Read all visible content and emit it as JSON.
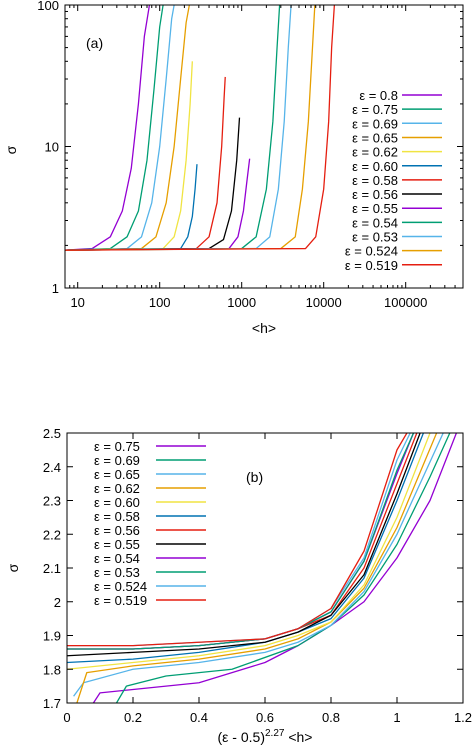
{
  "chart_data": [
    {
      "id": "a",
      "type": "line",
      "annotation": "(a)",
      "xlabel": "<h>",
      "ylabel": "σ",
      "xscale": "log",
      "yscale": "log",
      "xlim": [
        7,
        500000
      ],
      "ylim": [
        1,
        100
      ],
      "xticks": [
        {
          "v": 10,
          "label": "10"
        },
        {
          "v": 100,
          "label": "100"
        },
        {
          "v": 1000,
          "label": "1000"
        },
        {
          "v": 10000,
          "label": "10000"
        },
        {
          "v": 100000,
          "label": "100000"
        }
      ],
      "yticks": [
        {
          "v": 1,
          "label": "1"
        },
        {
          "v": 10,
          "label": "10"
        },
        {
          "v": 100,
          "label": "100"
        }
      ],
      "legend_position": "right",
      "series": [
        {
          "name": "ε = 0.8",
          "color": "#9400d3",
          "x": [
            7,
            15,
            25,
            35,
            45,
            55,
            65,
            75
          ],
          "y": [
            1.85,
            1.9,
            2.3,
            3.5,
            7,
            20,
            60,
            100
          ]
        },
        {
          "name": "ε = 0.75",
          "color": "#009e73",
          "x": [
            7,
            25,
            40,
            55,
            70,
            85,
            100,
            110
          ],
          "y": [
            1.85,
            1.9,
            2.3,
            3.5,
            8,
            25,
            70,
            100
          ]
        },
        {
          "name": "ε = 0.69",
          "color": "#56b4e9",
          "x": [
            7,
            40,
            60,
            80,
            100,
            120,
            140,
            150
          ],
          "y": [
            1.85,
            1.9,
            2.3,
            4,
            10,
            30,
            80,
            100
          ]
        },
        {
          "name": "ε = 0.65",
          "color": "#e69f00",
          "x": [
            7,
            60,
            90,
            120,
            150,
            180,
            210,
            230
          ],
          "y": [
            1.85,
            1.9,
            2.3,
            4,
            10,
            30,
            75,
            100
          ]
        },
        {
          "name": "ε = 0.62",
          "color": "#f0e442",
          "x": [
            7,
            110,
            150,
            180,
            210,
            235,
            250
          ],
          "y": [
            1.85,
            1.9,
            2.3,
            3.5,
            8,
            20,
            40
          ]
        },
        {
          "name": "ε = 0.60",
          "color": "#0072b2",
          "x": [
            7,
            180,
            220,
            250,
            270,
            285
          ],
          "y": [
            1.85,
            1.9,
            2.3,
            3.2,
            5,
            7.5
          ]
        },
        {
          "name": "ε = 0.58",
          "color": "#e51e10",
          "x": [
            7,
            280,
            400,
            500,
            570,
            610,
            630
          ],
          "y": [
            1.85,
            1.9,
            2.3,
            4,
            10,
            22,
            31
          ]
        },
        {
          "name": "ε = 0.56",
          "color": "#000000",
          "x": [
            7,
            400,
            600,
            750,
            870,
            940
          ],
          "y": [
            1.85,
            1.9,
            2.2,
            3.5,
            8,
            16
          ]
        },
        {
          "name": "ε = 0.55",
          "color": "#9400d3",
          "x": [
            7,
            700,
            900,
            1050,
            1150,
            1250
          ],
          "y": [
            1.85,
            1.9,
            2.3,
            3.5,
            5.5,
            8.2
          ]
        },
        {
          "name": "ε = 0.54",
          "color": "#009e73",
          "x": [
            7,
            1000,
            1500,
            2000,
            2400,
            2700,
            2900
          ],
          "y": [
            1.85,
            1.9,
            2.3,
            5,
            15,
            50,
            100
          ]
        },
        {
          "name": "ε = 0.53",
          "color": "#56b4e9",
          "x": [
            7,
            1500,
            2200,
            2800,
            3300,
            3700,
            4000
          ],
          "y": [
            1.85,
            1.9,
            2.3,
            5,
            15,
            50,
            100
          ]
        },
        {
          "name": "ε = 0.524",
          "color": "#e69f00",
          "x": [
            7,
            3000,
            4500,
            5500,
            6500,
            7300,
            7800
          ],
          "y": [
            1.85,
            1.9,
            2.3,
            5,
            15,
            50,
            100
          ]
        },
        {
          "name": "ε = 0.519",
          "color": "#e51e10",
          "x": [
            7,
            6000,
            8000,
            10000,
            11500,
            12500,
            13500
          ],
          "y": [
            1.85,
            1.9,
            2.3,
            5,
            15,
            50,
            100
          ]
        }
      ]
    },
    {
      "id": "b",
      "type": "line",
      "annotation": "(b)",
      "xlabel": "(ε - 0.5)^2.27 <h>",
      "xlabel_parts": {
        "prefix": "(ε - 0.5)",
        "exponent": "2.27",
        "suffix": " <h>"
      },
      "ylabel": "σ",
      "xlim": [
        0,
        1.2
      ],
      "ylim": [
        1.7,
        2.5
      ],
      "xticks": [
        {
          "v": 0,
          "label": "0"
        },
        {
          "v": 0.2,
          "label": "0.2"
        },
        {
          "v": 0.4,
          "label": "0.4"
        },
        {
          "v": 0.6,
          "label": "0.6"
        },
        {
          "v": 0.8,
          "label": "0.8"
        },
        {
          "v": 1,
          "label": "1"
        },
        {
          "v": 1.2,
          "label": "1.2"
        }
      ],
      "yticks": [
        {
          "v": 1.7,
          "label": "1.7"
        },
        {
          "v": 1.8,
          "label": "1.8"
        },
        {
          "v": 1.9,
          "label": "1.9"
        },
        {
          "v": 2,
          "label": "2"
        },
        {
          "v": 2.1,
          "label": "2.1"
        },
        {
          "v": 2.2,
          "label": "2.2"
        },
        {
          "v": 2.3,
          "label": "2.3"
        },
        {
          "v": 2.4,
          "label": "2.4"
        },
        {
          "v": 2.5,
          "label": "2.5"
        }
      ],
      "legend_position": "top-left",
      "series": [
        {
          "name": "ε = 0.75",
          "color": "#9400d3",
          "x": [
            0.08,
            0.1,
            0.2,
            0.4,
            0.6,
            0.7,
            0.8,
            0.9,
            1.0,
            1.1,
            1.18
          ],
          "y": [
            1.7,
            1.73,
            1.74,
            1.76,
            1.82,
            1.87,
            1.93,
            2.0,
            2.13,
            2.3,
            2.5
          ]
        },
        {
          "name": "ε = 0.69",
          "color": "#009e73",
          "x": [
            0.15,
            0.18,
            0.3,
            0.5,
            0.7,
            0.8,
            0.9,
            1.0,
            1.1,
            1.16
          ],
          "y": [
            1.7,
            1.75,
            1.78,
            1.8,
            1.87,
            1.93,
            2.02,
            2.17,
            2.37,
            2.5
          ]
        },
        {
          "name": "ε = 0.65",
          "color": "#56b4e9",
          "x": [
            0.02,
            0.05,
            0.2,
            0.4,
            0.6,
            0.7,
            0.8,
            0.9,
            1.0,
            1.14
          ],
          "y": [
            1.72,
            1.76,
            1.8,
            1.82,
            1.85,
            1.88,
            1.93,
            2.03,
            2.2,
            2.5
          ]
        },
        {
          "name": "ε = 0.62",
          "color": "#e69f00",
          "x": [
            0.03,
            0.06,
            0.2,
            0.4,
            0.6,
            0.7,
            0.8,
            0.9,
            1.0,
            1.12
          ],
          "y": [
            1.7,
            1.79,
            1.81,
            1.83,
            1.86,
            1.89,
            1.94,
            2.04,
            2.22,
            2.5
          ]
        },
        {
          "name": "ε = 0.60",
          "color": "#f0e442",
          "x": [
            0,
            0.2,
            0.4,
            0.6,
            0.7,
            0.8,
            0.9,
            1.0,
            1.1
          ],
          "y": [
            1.8,
            1.82,
            1.84,
            1.87,
            1.9,
            1.94,
            2.05,
            2.25,
            2.5
          ]
        },
        {
          "name": "ε = 0.58",
          "color": "#0072b2",
          "x": [
            0,
            0.2,
            0.4,
            0.6,
            0.7,
            0.8,
            0.9,
            1.0,
            1.08
          ],
          "y": [
            1.82,
            1.83,
            1.85,
            1.88,
            1.91,
            1.95,
            2.07,
            2.3,
            2.5
          ]
        },
        {
          "name": "ε = 0.56",
          "color": "#e51e10",
          "x": [
            0,
            0.2,
            0.4,
            0.6,
            0.7,
            0.8,
            0.9,
            1.0,
            1.06
          ],
          "y": [
            1.86,
            1.86,
            1.87,
            1.89,
            1.92,
            1.96,
            2.1,
            2.35,
            2.5
          ]
        },
        {
          "name": "ε = 0.55",
          "color": "#000000",
          "x": [
            0,
            0.2,
            0.4,
            0.6,
            0.7,
            0.8,
            0.9,
            1.0,
            1.07
          ],
          "y": [
            1.84,
            1.85,
            1.86,
            1.88,
            1.91,
            1.96,
            2.08,
            2.32,
            2.5
          ]
        },
        {
          "name": "ε = 0.54",
          "color": "#9400d3",
          "x": [
            0,
            0.2,
            0.4,
            0.6,
            0.7,
            0.8,
            0.9,
            1.0,
            1.05
          ],
          "y": [
            1.86,
            1.86,
            1.87,
            1.89,
            1.92,
            1.97,
            2.12,
            2.38,
            2.5
          ]
        },
        {
          "name": "ε = 0.53",
          "color": "#009e73",
          "x": [
            0,
            0.2,
            0.4,
            0.6,
            0.7,
            0.8,
            0.9,
            1.0,
            1.05
          ],
          "y": [
            1.86,
            1.86,
            1.87,
            1.89,
            1.92,
            1.97,
            2.12,
            2.39,
            2.5
          ]
        },
        {
          "name": "ε = 0.524",
          "color": "#56b4e9",
          "x": [
            0,
            0.2,
            0.4,
            0.6,
            0.7,
            0.8,
            0.9,
            1.0,
            1.04
          ],
          "y": [
            1.87,
            1.87,
            1.88,
            1.89,
            1.92,
            1.98,
            2.13,
            2.42,
            2.5
          ]
        },
        {
          "name": "ε = 0.519",
          "color": "#e51e10",
          "x": [
            0,
            0.2,
            0.4,
            0.6,
            0.7,
            0.8,
            0.9,
            1.0,
            1.03
          ],
          "y": [
            1.87,
            1.87,
            1.88,
            1.89,
            1.92,
            1.98,
            2.15,
            2.45,
            2.5
          ]
        }
      ]
    }
  ]
}
